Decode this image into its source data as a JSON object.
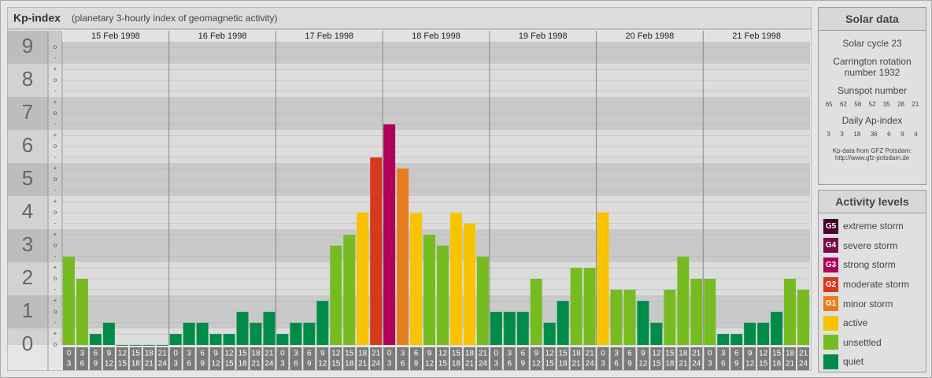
{
  "chart_data": {
    "type": "bar",
    "title": "Kp-index",
    "subtitle": "(planetary 3-hourly index of geomagnetic activity)",
    "ylim": [
      0,
      9.5
    ],
    "yticks": [
      0,
      1,
      2,
      3,
      4,
      5,
      6,
      7,
      8,
      9
    ],
    "minor_ticks": [
      {
        "value": 0,
        "label": "o"
      },
      {
        "value": 0.33,
        "label": "+"
      },
      {
        "value": 0.67,
        "label": "-"
      },
      {
        "value": 1,
        "label": "o"
      },
      {
        "value": 1.33,
        "label": "+"
      },
      {
        "value": 1.67,
        "label": "-"
      },
      {
        "value": 2,
        "label": "o"
      },
      {
        "value": 2.33,
        "label": "+"
      },
      {
        "value": 2.67,
        "label": "-"
      },
      {
        "value": 3,
        "label": "o"
      },
      {
        "value": 3.33,
        "label": "+"
      },
      {
        "value": 3.67,
        "label": "-"
      },
      {
        "value": 4,
        "label": "o"
      },
      {
        "value": 4.33,
        "label": "+"
      },
      {
        "value": 4.67,
        "label": "-"
      },
      {
        "value": 5,
        "label": "o"
      },
      {
        "value": 5.33,
        "label": "+"
      },
      {
        "value": 5.67,
        "label": "-"
      },
      {
        "value": 6,
        "label": "o"
      },
      {
        "value": 6.33,
        "label": "+"
      },
      {
        "value": 6.67,
        "label": "-"
      },
      {
        "value": 7,
        "label": "o"
      },
      {
        "value": 7.33,
        "label": "+"
      },
      {
        "value": 7.67,
        "label": "-"
      },
      {
        "value": 8,
        "label": "o"
      },
      {
        "value": 8.33,
        "label": "+"
      },
      {
        "value": 8.67,
        "label": "-"
      },
      {
        "value": 9,
        "label": "o"
      }
    ],
    "hours": [
      [
        0,
        3
      ],
      [
        3,
        6
      ],
      [
        6,
        9
      ],
      [
        9,
        12
      ],
      [
        12,
        15
      ],
      [
        15,
        18
      ],
      [
        18,
        21
      ],
      [
        21,
        24
      ]
    ],
    "days": [
      {
        "date": "15 Feb 1998",
        "values": [
          2.67,
          2,
          0.33,
          0.67,
          0,
          0,
          0,
          0
        ],
        "colors": [
          "#76bc21",
          "#76bc21",
          "#008c48",
          "#008c48",
          "#008c48",
          "#008c48",
          "#008c48",
          "#008c48"
        ]
      },
      {
        "date": "16 Feb 1998",
        "values": [
          0.33,
          0.67,
          0.67,
          0.33,
          0.33,
          1,
          0.67,
          1
        ],
        "colors": [
          "#008c48",
          "#008c48",
          "#008c48",
          "#008c48",
          "#008c48",
          "#008c48",
          "#008c48",
          "#008c48"
        ]
      },
      {
        "date": "17 Feb 1998",
        "values": [
          0.33,
          0.67,
          0.67,
          1.33,
          3,
          3.33,
          4,
          5.67
        ],
        "colors": [
          "#008c48",
          "#008c48",
          "#008c48",
          "#008c48",
          "#76bc21",
          "#76bc21",
          "#f8c400",
          "#d63a1c"
        ]
      },
      {
        "date": "18 Feb 1998",
        "values": [
          6.67,
          5.33,
          4,
          3.33,
          3,
          4,
          3.67,
          2.67
        ],
        "colors": [
          "#b0005a",
          "#e87d1e",
          "#f8c400",
          "#76bc21",
          "#76bc21",
          "#f8c400",
          "#f8c400",
          "#76bc21"
        ]
      },
      {
        "date": "19 Feb 1998",
        "values": [
          1,
          1,
          1,
          2,
          0.67,
          1.33,
          2.33,
          2.33
        ],
        "colors": [
          "#008c48",
          "#008c48",
          "#008c48",
          "#76bc21",
          "#008c48",
          "#008c48",
          "#76bc21",
          "#76bc21"
        ]
      },
      {
        "date": "20 Feb 1998",
        "values": [
          4,
          1.67,
          1.67,
          1.33,
          0.67,
          1.67,
          2.67,
          2
        ],
        "colors": [
          "#f8c400",
          "#76bc21",
          "#76bc21",
          "#008c48",
          "#008c48",
          "#76bc21",
          "#76bc21",
          "#76bc21"
        ]
      },
      {
        "date": "21 Feb 1998",
        "values": [
          2,
          0.33,
          0.33,
          0.67,
          0.67,
          1,
          2,
          1.67
        ],
        "colors": [
          "#76bc21",
          "#008c48",
          "#008c48",
          "#008c48",
          "#008c48",
          "#008c48",
          "#76bc21",
          "#76bc21"
        ]
      }
    ]
  },
  "solar": {
    "title": "Solar data",
    "cycle": "Solar cycle 23",
    "carrington": "Carrington rotation number 1932",
    "sunspot_title": "Sunspot number",
    "sunspot": [
      65,
      62,
      58,
      52,
      35,
      28,
      21
    ],
    "ap_title": "Daily Ap-index",
    "ap": [
      3,
      3,
      18,
      36,
      6,
      9,
      4
    ],
    "source": "Kp-data from GFZ Potsdam:",
    "source_url": "http://www.gfz-potsdam.de"
  },
  "levels": {
    "title": "Activity levels",
    "items": [
      {
        "code": "G5",
        "name": "extreme storm",
        "color": "#4a0030"
      },
      {
        "code": "G4",
        "name": "severe storm",
        "color": "#7a0a4a"
      },
      {
        "code": "G3",
        "name": "strong storm",
        "color": "#b0005a"
      },
      {
        "code": "G2",
        "name": "moderate storm",
        "color": "#d63a1c"
      },
      {
        "code": "G1",
        "name": "minor storm",
        "color": "#e87d1e"
      },
      {
        "name": "active",
        "color": "#f8c400"
      },
      {
        "name": "unsettled",
        "color": "#76bc21"
      },
      {
        "name": "quiet",
        "color": "#008c48"
      }
    ]
  }
}
